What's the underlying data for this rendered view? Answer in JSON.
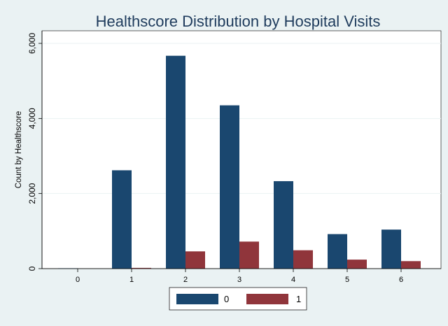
{
  "chart_data": {
    "type": "bar",
    "title": "Healthscore Distribution by Hospital Visits",
    "ylabel": "Count by Healthscore",
    "xlabel": "",
    "categories": [
      "0",
      "1",
      "2",
      "3",
      "4",
      "5",
      "6"
    ],
    "series": [
      {
        "name": "0",
        "values": [
          10,
          2620,
          5670,
          4350,
          2330,
          920,
          1040
        ],
        "color": "#1a476f"
      },
      {
        "name": "1",
        "values": [
          0,
          20,
          460,
          720,
          490,
          240,
          200
        ],
        "color": "#90353b"
      }
    ],
    "ylim": [
      0,
      6000
    ],
    "yticks": [
      0,
      2000,
      4000,
      6000
    ],
    "ytick_labels": [
      "0",
      "2,000",
      "4,000",
      "6,000"
    ],
    "grid": true,
    "legend_position": "bottom-center"
  },
  "colors": {
    "background": "#eaf2f3",
    "plot_background": "#ffffff",
    "grid": "#eaf2f3",
    "title": "#1e3b5c"
  }
}
